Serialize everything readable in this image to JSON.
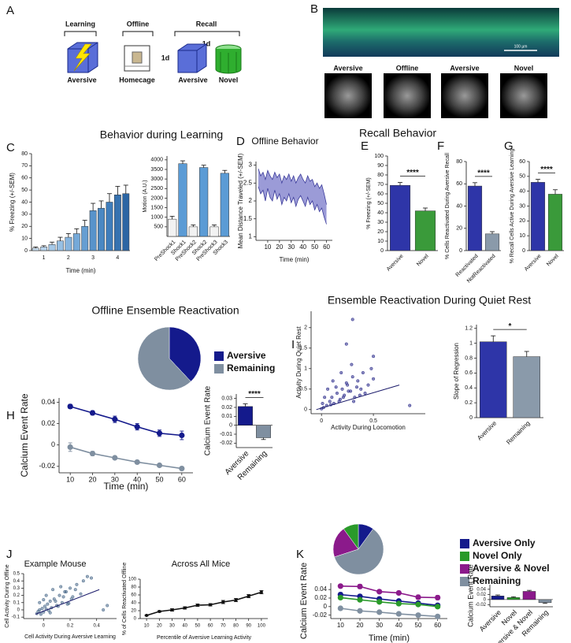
{
  "panel_a": {
    "panel": "A",
    "phases": [
      "Learning",
      "Offline",
      "Recall"
    ],
    "intervals": [
      "1d",
      "1d"
    ],
    "contexts": [
      "Aversive",
      "Homecage",
      "Aversive",
      "Novel"
    ]
  },
  "panel_b": {
    "panel": "B",
    "scale": "100 µm",
    "sessions": [
      "Aversive",
      "Offline",
      "Aversive",
      "Novel"
    ]
  },
  "chart_data": [
    {
      "type": "bar",
      "panel": "C",
      "title": "Behavior during Learning",
      "categories": [
        null,
        "1",
        null,
        null,
        "2",
        null,
        null,
        "3",
        null,
        null,
        "4",
        null
      ],
      "values": [
        2,
        3,
        5,
        8,
        11,
        14,
        20,
        33,
        35,
        40,
        46,
        47
      ],
      "errors": [
        1,
        1,
        2,
        3,
        3,
        4,
        5,
        6,
        6,
        7,
        7,
        7
      ],
      "colors": [
        "#c6dcef",
        "#b7d3ec",
        "#a6c9e8",
        "#96bfe3",
        "#86b4de",
        "#75a9d8",
        "#669ed2",
        "#5893cb",
        "#4a88c3",
        "#3f7dbb",
        "#3672b0",
        "#2d66a4"
      ],
      "ylabel": "% Freezing (+/-SEM)",
      "xlabel": "Time (min)",
      "ylim": [
        0,
        80
      ],
      "yticks": [
        0,
        10,
        20,
        30,
        40,
        50,
        60,
        70,
        80
      ]
    },
    {
      "type": "bar",
      "categories": [
        "PreShock1",
        "Shock1",
        "PreShock2",
        "Shock2",
        "PreShock3",
        "Shock3"
      ],
      "values": [
        900,
        3800,
        500,
        3600,
        500,
        3300
      ],
      "errors": [
        150,
        150,
        100,
        120,
        100,
        150
      ],
      "colors": [
        "#f2f2f2",
        "#5b9bd5",
        "#f2f2f2",
        "#5b9bd5",
        "#f2f2f2",
        "#5b9bd5"
      ],
      "ylabel": "Motion (A.U.)",
      "ylim": [
        0,
        4200
      ],
      "yticks": [
        500,
        1000,
        1500,
        2000,
        2500,
        3000,
        3500,
        4000
      ]
    },
    {
      "type": "line",
      "panel": "D",
      "title": "Offline Behavior",
      "fill_between": true,
      "fill": "#8a8ad0",
      "markers": false,
      "x": [
        2,
        4,
        6,
        8,
        10,
        12,
        14,
        16,
        18,
        20,
        22,
        24,
        26,
        28,
        30,
        32,
        34,
        36,
        38,
        40,
        42,
        44,
        46,
        48,
        50,
        52,
        54,
        56,
        58,
        60
      ],
      "series": [
        {
          "color": "#3a3a9a",
          "values": [
            2.9,
            2.7,
            2.8,
            2.6,
            2.85,
            2.7,
            2.6,
            2.8,
            2.65,
            2.75,
            2.5,
            2.7,
            2.6,
            2.75,
            2.55,
            2.7,
            2.5,
            2.65,
            2.75,
            2.6,
            2.5,
            2.7,
            2.55,
            2.6,
            2.4,
            2.5,
            2.35,
            2.45,
            2.2,
            1.9
          ]
        },
        {
          "color": "#3a3a9a",
          "values": [
            2.4,
            2.2,
            2.3,
            2.0,
            2.35,
            2.1,
            2.0,
            2.3,
            2.05,
            2.2,
            1.9,
            2.1,
            2.0,
            2.2,
            1.95,
            2.1,
            1.85,
            2.05,
            2.15,
            2.0,
            1.85,
            2.1,
            1.9,
            2.0,
            1.75,
            1.9,
            1.7,
            1.8,
            1.55,
            1.35
          ]
        }
      ],
      "xlim": [
        0,
        65
      ],
      "xticks": [
        10,
        20,
        30,
        40,
        50,
        60
      ],
      "ylim": [
        0.9,
        3.1
      ],
      "yticks": [
        1,
        1.5,
        2,
        2.5,
        3
      ],
      "xlabel": "Time (min)",
      "ylabel": "Mean Distance Traveled (+/-SEM)"
    },
    {
      "type": "bar",
      "panel": "E",
      "title": "Recall Behavior",
      "categories": [
        "Aversive",
        "Novel"
      ],
      "values": [
        69,
        42
      ],
      "errors": [
        3,
        3
      ],
      "colors": [
        "#2e35a8",
        "#3a9a3a"
      ],
      "sig": "****",
      "ylabel": "% Freezing (+/-SEM)",
      "ylim": [
        0,
        100
      ],
      "yticks": [
        0,
        10,
        20,
        30,
        40,
        50,
        60,
        70,
        80,
        90,
        100
      ]
    },
    {
      "type": "bar",
      "panel": "F",
      "categories": [
        "Reactivated",
        "NotReactivated"
      ],
      "values": [
        58,
        15
      ],
      "errors": [
        3,
        2
      ],
      "colors": [
        "#2e35a8",
        "#8a9aaa"
      ],
      "sig": "****",
      "ylabel": "% Cells Reactivated During Aversive Recall",
      "ylim": [
        0,
        80
      ],
      "yticks": [
        0,
        20,
        40,
        60,
        80
      ]
    },
    {
      "type": "bar",
      "panel": "G",
      "categories": [
        "Aversive",
        "Novel"
      ],
      "values": [
        46,
        38
      ],
      "errors": [
        2,
        3
      ],
      "colors": [
        "#2e35a8",
        "#3a9a3a"
      ],
      "sig": "****",
      "ylabel": "% Recall Cells Active During Aversive Learning",
      "ylim": [
        0,
        60
      ],
      "yticks": [
        0,
        10,
        20,
        30,
        40,
        50,
        60
      ]
    },
    {
      "type": "pie",
      "title": "Offline Ensemble Reactivation",
      "categories": [
        "Aversive",
        "Remaining"
      ],
      "values": [
        38,
        62
      ],
      "colors": [
        "#141a8c",
        "#7f8fa0"
      ]
    },
    {
      "type": "line",
      "panel": "H",
      "markers": true,
      "x": [
        10,
        20,
        30,
        40,
        50,
        60
      ],
      "xlim": [
        5,
        65
      ],
      "xticks": [
        10,
        20,
        30,
        40,
        50,
        60
      ],
      "ylim": [
        -0.026,
        0.044
      ],
      "yticks": [
        -0.02,
        0,
        0.02,
        0.04
      ],
      "ylabel": "Calcium Event Rate",
      "xlabel": "Time (min)",
      "series": [
        {
          "color": "#141a8c",
          "values": [
            0.036,
            0.03,
            0.024,
            0.017,
            0.011,
            0.009
          ],
          "errors": [
            0.002,
            0.002,
            0.003,
            0.003,
            0.003,
            0.004
          ]
        },
        {
          "color": "#7f8fa0",
          "values": [
            -0.002,
            -0.008,
            -0.012,
            -0.016,
            -0.019,
            -0.022
          ],
          "errors": [
            0.004,
            0.002,
            0.001,
            0.001,
            0.001,
            0.001
          ]
        }
      ]
    },
    {
      "type": "bar",
      "categories": [
        "Aversive",
        "Remaining"
      ],
      "values": [
        0.021,
        -0.014
      ],
      "errors": [
        0.003,
        0.002
      ],
      "colors": [
        "#141a8c",
        "#7f8fa0"
      ],
      "sig": "****",
      "ylabel": "Calcium Event Rate",
      "ylim": [
        -0.025,
        0.035
      ],
      "yticks": [
        -0.02,
        -0.01,
        0,
        0.01,
        0.02,
        0.03
      ]
    },
    {
      "type": "scatter",
      "panel": "I",
      "title": "Ensemble Reactivation During Quiet Rest",
      "color": "#2a2a8a",
      "x": [
        0.02,
        0.05,
        0.08,
        0.1,
        0.12,
        0.15,
        0.18,
        0.2,
        0.22,
        0.25,
        0.28,
        0.3,
        0.32,
        0.35,
        0.38,
        0.4,
        0.42,
        0.45,
        0.48,
        0.5,
        0.03,
        0.06,
        0.09,
        0.11,
        0.14,
        0.17,
        0.19,
        0.21,
        0.24,
        0.26,
        0.29,
        0.31,
        0.34,
        0.37,
        0.3,
        0.24,
        0.5,
        0.85,
        0.0,
        0.01
      ],
      "y": [
        0.05,
        0.1,
        0.2,
        0.3,
        0.15,
        0.4,
        0.25,
        0.5,
        0.35,
        0.6,
        0.45,
        0.8,
        0.3,
        0.7,
        0.5,
        0.9,
        0.4,
        0.6,
        1.0,
        0.75,
        0.3,
        0.5,
        0.12,
        0.7,
        0.55,
        0.2,
        0.9,
        0.3,
        0.65,
        0.45,
        1.1,
        0.2,
        0.55,
        0.35,
        2.2,
        1.6,
        1.3,
        0.1,
        0.02,
        0.15
      ],
      "fit": {
        "x": [
          -0.05,
          0.75
        ],
        "y": [
          0.0,
          0.6
        ]
      },
      "xlim": [
        -0.1,
        1.0
      ],
      "xticks": [
        0,
        0.5
      ],
      "ylim": [
        -0.1,
        2.4
      ],
      "yticks": [
        0,
        0.5,
        1,
        1.5,
        2
      ],
      "xlabel": "Activity During Locomotion",
      "ylabel": "Activity During Quiet Rest"
    },
    {
      "type": "bar",
      "categories": [
        "Aversive",
        "Remaining"
      ],
      "values": [
        1.02,
        0.82
      ],
      "errors": [
        0.08,
        0.07
      ],
      "colors": [
        "#2e35a8",
        "#8a9aaa"
      ],
      "sig": "*",
      "ylabel": "Slope of Regression",
      "ylim": [
        0,
        1.25
      ],
      "yticks": [
        0,
        0.2,
        0.4,
        0.6,
        0.8,
        1,
        1.2
      ]
    },
    {
      "type": "scatter",
      "panel": "J",
      "title": "Example Mouse",
      "color": "#4a6a8a",
      "x": [
        -0.05,
        -0.04,
        -0.03,
        -0.02,
        -0.01,
        0,
        0.01,
        0.02,
        0.03,
        0.04,
        0.05,
        0.06,
        0.08,
        0.1,
        0.12,
        0.14,
        0.16,
        0.18,
        0.2,
        0.22,
        0.25,
        0.28,
        0.3,
        0.33,
        -0.03,
        0,
        0.02,
        0.05,
        0.07,
        0.09,
        0.11,
        0.13,
        0.15,
        0.17,
        0.19,
        0.21,
        0.24,
        0.36,
        0.45,
        0.48
      ],
      "y": [
        -0.05,
        -0.02,
        0,
        -0.06,
        0.02,
        -0.03,
        0.05,
        0.01,
        0.08,
        -0.01,
        0.12,
        0.03,
        0.15,
        0.06,
        0.2,
        0.1,
        0.25,
        0.08,
        0.3,
        0.18,
        0.35,
        0.22,
        0.4,
        0.46,
        0.1,
        0.14,
        0.2,
        -0.04,
        0.28,
        0.12,
        0.05,
        0.32,
        0.18,
        0.25,
        0.09,
        0.15,
        0.28,
        0.44,
        0.0,
        0.06
      ],
      "fit": {
        "x": [
          -0.06,
          0.42
        ],
        "y": [
          -0.06,
          0.28
        ]
      },
      "xlim": [
        -0.15,
        0.55
      ],
      "xticks": [
        0,
        0.2,
        0.4
      ],
      "ylim": [
        -0.12,
        0.5
      ],
      "yticks": [
        -0.1,
        0,
        0.1,
        0.2,
        0.3,
        0.4,
        0.5
      ],
      "xlabel": "Cell Activity During Aversive Learning",
      "ylabel": "Cell Activity During Offline"
    },
    {
      "type": "line",
      "title": "Across All Mice",
      "markers": true,
      "x": [
        10,
        20,
        30,
        40,
        50,
        60,
        70,
        80,
        90,
        100
      ],
      "xlim": [
        5,
        105
      ],
      "xticks": [
        10,
        20,
        30,
        40,
        50,
        60,
        70,
        80,
        90,
        100
      ],
      "ylim": [
        0,
        100
      ],
      "yticks": [
        0,
        20,
        40,
        60,
        80,
        100
      ],
      "ylabel": "% of Cells Reactivated Offline",
      "xlabel": "Percentile of Aversive Learning Activity",
      "series": [
        {
          "color": "#111111",
          "values": [
            8,
            18,
            22,
            27,
            34,
            35,
            42,
            47,
            57,
            67
          ],
          "errors": [
            1.5,
            2,
            3,
            3,
            3,
            3,
            4,
            4,
            4,
            4
          ]
        }
      ]
    },
    {
      "type": "pie",
      "panel": "K",
      "categories": [
        "Aversive Only",
        "Novel Only",
        "Aversive & Novel",
        "Remaining"
      ],
      "values": [
        10,
        10,
        20,
        60
      ],
      "colors": [
        "#141a8c",
        "#2a9a2a",
        "#8b1a8b",
        "#7f8fa0"
      ]
    },
    {
      "type": "line",
      "markers": true,
      "x": [
        10,
        20,
        30,
        40,
        50,
        60
      ],
      "xlim": [
        5,
        65
      ],
      "xticks": [
        10,
        20,
        30,
        40,
        50,
        60
      ],
      "ylim": [
        -0.028,
        0.055
      ],
      "yticks": [
        -0.02,
        0,
        0.02,
        0.04
      ],
      "ylabel": "Calcium Event Rate",
      "xlabel": "Time (min)",
      "series": [
        {
          "color": "#8b1a8b",
          "values": [
            0.048,
            0.047,
            0.035,
            0.032,
            0.022,
            0.021
          ],
          "errors": [
            0.004,
            0.005,
            0.004,
            0.004,
            0.005,
            0.005
          ]
        },
        {
          "color": "#141a8c",
          "values": [
            0.028,
            0.024,
            0.018,
            0.013,
            0.008,
            0.003
          ],
          "errors": [
            0.005,
            0.004,
            0.004,
            0.004,
            0.004,
            0.004
          ]
        },
        {
          "color": "#2a9a2a",
          "values": [
            0.021,
            0.016,
            0.011,
            0.007,
            0.005,
            0.0
          ],
          "errors": [
            0.004,
            0.004,
            0.003,
            0.003,
            0.003,
            0.003
          ]
        },
        {
          "color": "#7f8fa0",
          "values": [
            -0.004,
            -0.01,
            -0.013,
            -0.017,
            -0.02,
            -0.023
          ],
          "errors": [
            0.004,
            0.002,
            0.001,
            0.001,
            0.001,
            0.001
          ]
        }
      ]
    },
    {
      "type": "bar",
      "categories": [
        "Aversive",
        "Novel",
        "Aversive & Novel",
        "Remaining"
      ],
      "values": [
        0.014,
        0.008,
        0.032,
        -0.012
      ],
      "errors": [
        0.004,
        0.003,
        0.004,
        0.003
      ],
      "colors": [
        "#141a8c",
        "#2a9a2a",
        "#8b1a8b",
        "#7f8fa0"
      ],
      "ylabel": "Calcium Event Rate",
      "ylim": [
        -0.028,
        0.058
      ],
      "yticks": [
        -0.02,
        0,
        0.02,
        0.04
      ]
    }
  ]
}
